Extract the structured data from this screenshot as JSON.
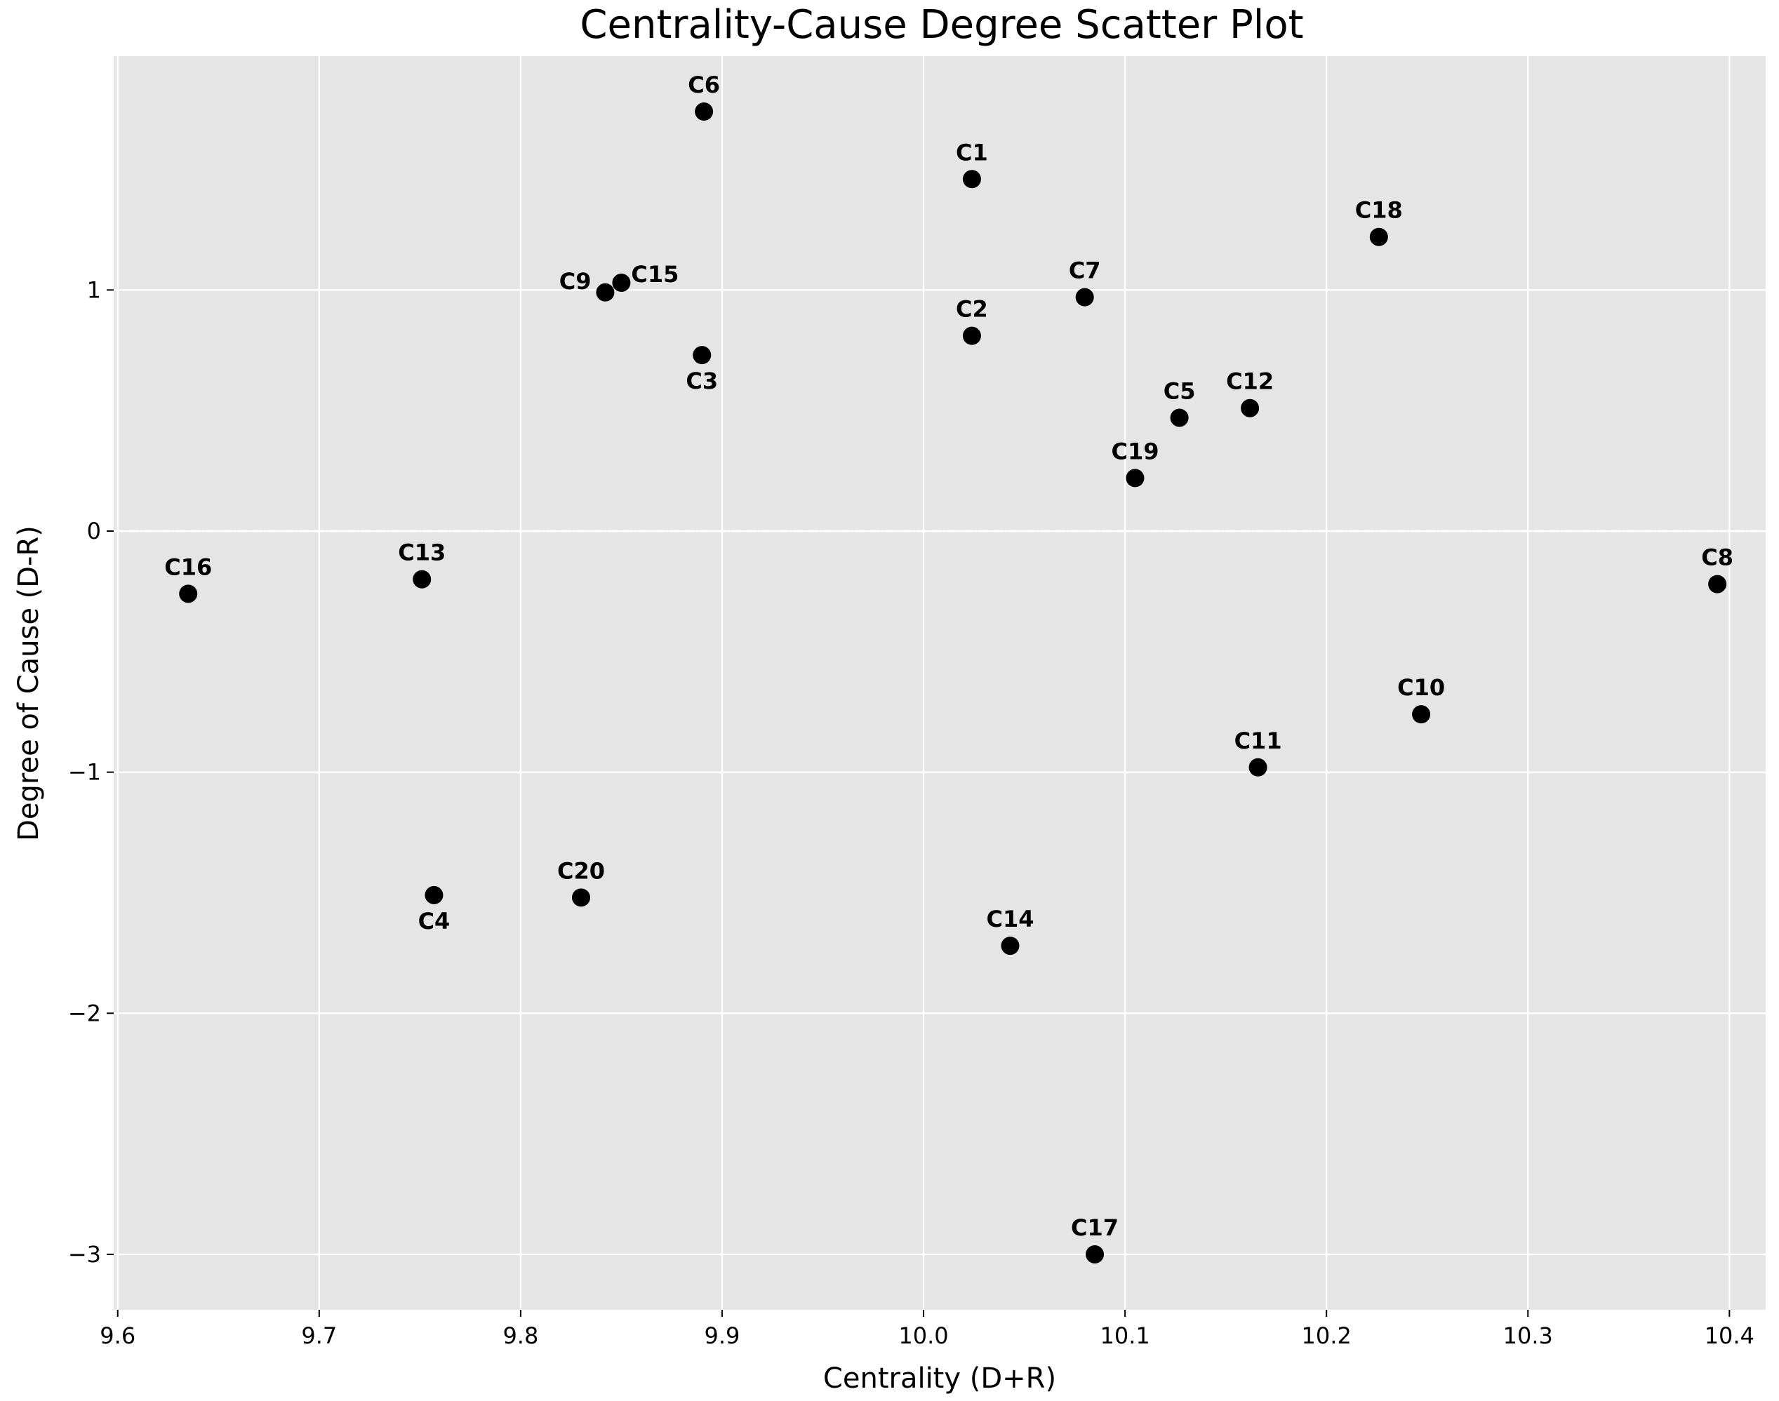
{
  "chart_data": {
    "type": "scatter",
    "title": "Centrality-Cause Degree Scatter Plot",
    "xlabel": "Centrality (D+R)",
    "ylabel": "Degree of Cause (D-R)",
    "xlim": [
      9.598,
      10.418
    ],
    "ylim": [
      -3.23,
      1.97
    ],
    "xticks": [
      9.6,
      9.7,
      9.8,
      9.9,
      10.0,
      10.1,
      10.2,
      10.3,
      10.4
    ],
    "xtick_labels": [
      "9.6",
      "9.7",
      "9.8",
      "9.9",
      "10.0",
      "10.1",
      "10.2",
      "10.3",
      "10.4"
    ],
    "yticks": [
      -3,
      -2,
      -1,
      0,
      1
    ],
    "ytick_labels": [
      "−3",
      "−2",
      "−1",
      "0",
      "1"
    ],
    "grid": true,
    "zero_line": {
      "y": 0,
      "style": "dashed"
    },
    "colors": {
      "plot_background": "#e5e5e5",
      "grid": "#ffffff",
      "marker": "#000000"
    },
    "points": [
      {
        "label": "C1",
        "x": 10.024,
        "y": 1.46,
        "label_pos": "above"
      },
      {
        "label": "C2",
        "x": 10.024,
        "y": 0.81,
        "label_pos": "above"
      },
      {
        "label": "C3",
        "x": 9.89,
        "y": 0.73,
        "label_pos": "below"
      },
      {
        "label": "C4",
        "x": 9.757,
        "y": -1.51,
        "label_pos": "below"
      },
      {
        "label": "C5",
        "x": 10.127,
        "y": 0.47,
        "label_pos": "above"
      },
      {
        "label": "C6",
        "x": 9.891,
        "y": 1.74,
        "label_pos": "above"
      },
      {
        "label": "C7",
        "x": 10.08,
        "y": 0.97,
        "label_pos": "above"
      },
      {
        "label": "C8",
        "x": 10.394,
        "y": -0.22,
        "label_pos": "above"
      },
      {
        "label": "C9",
        "x": 9.842,
        "y": 0.99,
        "label_pos": "left"
      },
      {
        "label": "C10",
        "x": 10.247,
        "y": -0.76,
        "label_pos": "above"
      },
      {
        "label": "C11",
        "x": 10.166,
        "y": -0.98,
        "label_pos": "above"
      },
      {
        "label": "C12",
        "x": 10.162,
        "y": 0.51,
        "label_pos": "above"
      },
      {
        "label": "C13",
        "x": 9.751,
        "y": -0.2,
        "label_pos": "above"
      },
      {
        "label": "C14",
        "x": 10.043,
        "y": -1.72,
        "label_pos": "above"
      },
      {
        "label": "C15",
        "x": 9.85,
        "y": 1.03,
        "label_pos": "right"
      },
      {
        "label": "C16",
        "x": 9.635,
        "y": -0.26,
        "label_pos": "above"
      },
      {
        "label": "C17",
        "x": 10.085,
        "y": -3.0,
        "label_pos": "above"
      },
      {
        "label": "C18",
        "x": 10.226,
        "y": 1.22,
        "label_pos": "above"
      },
      {
        "label": "C19",
        "x": 10.105,
        "y": 0.22,
        "label_pos": "above"
      },
      {
        "label": "C20",
        "x": 9.83,
        "y": -1.52,
        "label_pos": "above"
      }
    ]
  }
}
